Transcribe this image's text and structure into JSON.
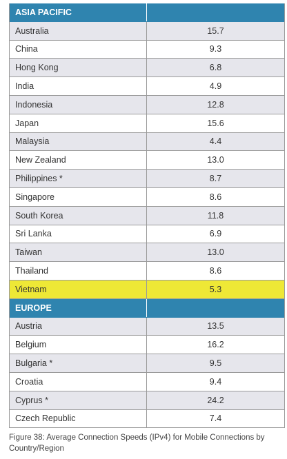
{
  "sections": [
    {
      "name": "ASIA PACIFIC",
      "rows": [
        {
          "country": "Australia",
          "value": "15.7"
        },
        {
          "country": "China",
          "value": "9.3"
        },
        {
          "country": "Hong Kong",
          "value": "6.8"
        },
        {
          "country": "India",
          "value": "4.9"
        },
        {
          "country": "Indonesia",
          "value": "12.8"
        },
        {
          "country": "Japan",
          "value": "15.6"
        },
        {
          "country": "Malaysia",
          "value": "4.4"
        },
        {
          "country": "New Zealand",
          "value": "13.0"
        },
        {
          "country": "Philippines *",
          "value": "8.7"
        },
        {
          "country": "Singapore",
          "value": "8.6"
        },
        {
          "country": "South Korea",
          "value": "11.8"
        },
        {
          "country": "Sri Lanka",
          "value": "6.9"
        },
        {
          "country": "Taiwan",
          "value": "13.0"
        },
        {
          "country": "Thailand",
          "value": "8.6"
        },
        {
          "country": "Vietnam",
          "value": "5.3",
          "highlighted": true
        }
      ]
    },
    {
      "name": "EUROPE",
      "rows": [
        {
          "country": "Austria",
          "value": "13.5"
        },
        {
          "country": "Belgium",
          "value": "16.2"
        },
        {
          "country": "Bulgaria *",
          "value": "9.5"
        },
        {
          "country": "Croatia",
          "value": "9.4"
        },
        {
          "country": "Cyprus *",
          "value": "24.2"
        },
        {
          "country": "Czech Republic",
          "value": "7.4"
        }
      ]
    }
  ],
  "caption": "Figure 38: Average Connection Speeds (IPv4) for Mobile Connections by Country/Region",
  "colors": {
    "header": "#2f84af",
    "row_alt": "#e6e6ec",
    "highlight": "#eee836"
  }
}
